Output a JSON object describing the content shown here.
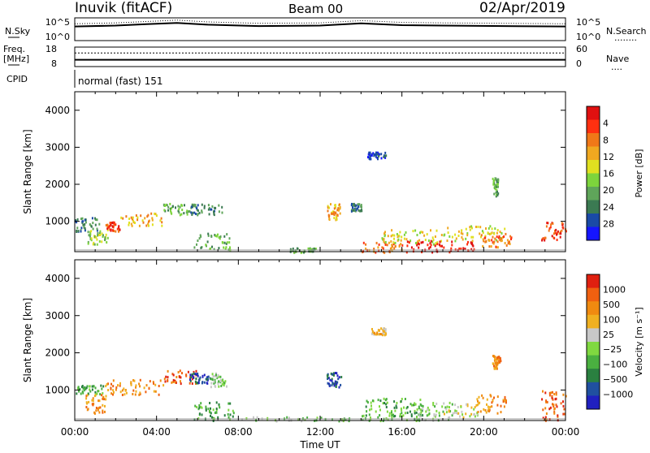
{
  "header": {
    "station": "Inuvik (fitACF)",
    "beam": "Beam 00",
    "date": "02/Apr/2019"
  },
  "noise_panel": {
    "left_label": "N.Sky",
    "left_ticks": [
      "10^5",
      "10^0"
    ],
    "right_ticks": [
      "10^5",
      "10^0"
    ],
    "right_label": "N.Search",
    "right_marker": "........"
  },
  "freq_panel": {
    "left_label_line1": "Freq.",
    "left_label_line2": "[MHz]",
    "left_ticks": [
      "18",
      "8"
    ],
    "right_ticks": [
      "60",
      "0"
    ],
    "right_label": "Nave",
    "right_marker": "...."
  },
  "cpid_panel": {
    "label": "CPID",
    "text": "normal (fast) 151"
  },
  "chart_data": [
    {
      "type": "heatmap",
      "name": "power",
      "ylabel": "Slant Range [km]",
      "yticks": [
        1000,
        2000,
        3000,
        4000
      ],
      "ylim": [
        180,
        4500
      ],
      "xlim": [
        0,
        24
      ],
      "colorbar": {
        "label": "Power [dB]",
        "ticks": [
          "4",
          "8",
          "12",
          "16",
          "20",
          "24",
          "28"
        ],
        "colors": [
          "#1515ff",
          "#1a4aa6",
          "#3b7a52",
          "#5fa55a",
          "#7dd43c",
          "#e0e020",
          "#f0a820",
          "#f07818",
          "#ff3010",
          "#e01010"
        ]
      },
      "regions": [
        {
          "t0": 0.0,
          "t1": 1.2,
          "r0": 750,
          "r1": 1150,
          "level": 2
        },
        {
          "t0": 0.6,
          "t1": 1.6,
          "r0": 400,
          "r1": 800,
          "level": 4
        },
        {
          "t0": 1.5,
          "t1": 2.2,
          "r0": 750,
          "r1": 1000,
          "level": 8
        },
        {
          "t0": 2.2,
          "t1": 4.3,
          "r0": 900,
          "r1": 1250,
          "level": 6
        },
        {
          "t0": 4.3,
          "t1": 5.8,
          "r0": 1200,
          "r1": 1500,
          "level": 3
        },
        {
          "t0": 5.6,
          "t1": 7.2,
          "r0": 1200,
          "r1": 1500,
          "level": 2
        },
        {
          "t0": 5.8,
          "t1": 7.6,
          "r0": 250,
          "r1": 700,
          "level": 3
        },
        {
          "t0": 10.5,
          "t1": 11.8,
          "r0": 180,
          "r1": 300,
          "level": 3
        },
        {
          "t0": 12.3,
          "t1": 13.0,
          "r0": 1050,
          "r1": 1500,
          "level": 6
        },
        {
          "t0": 13.5,
          "t1": 14.0,
          "r0": 1300,
          "r1": 1500,
          "level": 2
        },
        {
          "t0": 14.3,
          "t1": 15.2,
          "r0": 2700,
          "r1": 2900,
          "level": 1
        },
        {
          "t0": 14.0,
          "t1": 16.0,
          "r0": 180,
          "r1": 450,
          "level": 7
        },
        {
          "t0": 15.0,
          "t1": 18.0,
          "r0": 400,
          "r1": 800,
          "level": 5
        },
        {
          "t0": 16.2,
          "t1": 19.5,
          "r0": 180,
          "r1": 500,
          "level": 9
        },
        {
          "t0": 18.0,
          "t1": 21.0,
          "r0": 500,
          "r1": 900,
          "level": 5
        },
        {
          "t0": 19.8,
          "t1": 21.4,
          "r0": 300,
          "r1": 700,
          "level": 7
        },
        {
          "t0": 20.4,
          "t1": 20.7,
          "r0": 1700,
          "r1": 2200,
          "level": 3
        },
        {
          "t0": 22.8,
          "t1": 24.0,
          "r0": 500,
          "r1": 1000,
          "level": 8
        }
      ]
    },
    {
      "type": "heatmap",
      "name": "velocity",
      "ylabel": "Slant Range [km]",
      "yticks": [
        1000,
        2000,
        3000,
        4000
      ],
      "ylim": [
        180,
        4500
      ],
      "xlim": [
        0,
        24
      ],
      "xticks": [
        "00:00",
        "04:00",
        "08:00",
        "12:00",
        "16:00",
        "20:00",
        "00:00"
      ],
      "xlabel": "Time UT",
      "colorbar": {
        "label": "Velocity [m s⁻¹]",
        "ticks": [
          "1000",
          "500",
          "100",
          "25",
          "−25",
          "−100",
          "−500",
          "−1000"
        ],
        "colors": [
          "#2020c0",
          "#2050a0",
          "#2a8040",
          "#4ab040",
          "#80d840",
          "#c8c8c8",
          "#f0b020",
          "#f08a10",
          "#f06010",
          "#e02010"
        ]
      },
      "regions": [
        {
          "t0": 0.0,
          "t1": 1.4,
          "r0": 900,
          "r1": 1150,
          "level": 3
        },
        {
          "t0": 0.5,
          "t1": 1.5,
          "r0": 400,
          "r1": 900,
          "level": 7
        },
        {
          "t0": 1.4,
          "t1": 4.3,
          "r0": 900,
          "r1": 1300,
          "level": 7
        },
        {
          "t0": 4.3,
          "t1": 6.0,
          "r0": 1200,
          "r1": 1550,
          "level": 8
        },
        {
          "t0": 5.6,
          "t1": 6.6,
          "r0": 1200,
          "r1": 1500,
          "level": 1
        },
        {
          "t0": 6.6,
          "t1": 7.4,
          "r0": 1100,
          "r1": 1500,
          "level": 4
        },
        {
          "t0": 5.8,
          "t1": 7.8,
          "r0": 200,
          "r1": 700,
          "level": 3
        },
        {
          "t0": 12.3,
          "t1": 13.0,
          "r0": 1100,
          "r1": 1500,
          "level": 1
        },
        {
          "t0": 14.5,
          "t1": 15.2,
          "r0": 2500,
          "r1": 2700,
          "level": 6
        },
        {
          "t0": 8.0,
          "t1": 14.0,
          "r0": 180,
          "r1": 300,
          "level": 4
        },
        {
          "t0": 14.0,
          "t1": 17.0,
          "r0": 200,
          "r1": 800,
          "level": 3
        },
        {
          "t0": 16.5,
          "t1": 18.5,
          "r0": 200,
          "r1": 700,
          "level": 4
        },
        {
          "t0": 18.0,
          "t1": 19.7,
          "r0": 250,
          "r1": 650,
          "level": 5
        },
        {
          "t0": 19.6,
          "t1": 21.2,
          "r0": 400,
          "r1": 900,
          "level": 7
        },
        {
          "t0": 20.4,
          "t1": 20.8,
          "r0": 1600,
          "r1": 2000,
          "level": 7
        },
        {
          "t0": 22.8,
          "t1": 24.0,
          "r0": 200,
          "r1": 1000,
          "level": 8
        }
      ]
    }
  ],
  "noise_series": [
    {
      "t": 0.0,
      "v": 0.62
    },
    {
      "t": 2.0,
      "v": 0.66
    },
    {
      "t": 3.5,
      "v": 0.72
    },
    {
      "t": 5.0,
      "v": 0.78
    },
    {
      "t": 6.5,
      "v": 0.7
    },
    {
      "t": 9.0,
      "v": 0.64
    },
    {
      "t": 12.0,
      "v": 0.66
    },
    {
      "t": 14.0,
      "v": 0.76
    },
    {
      "t": 16.0,
      "v": 0.68
    },
    {
      "t": 18.0,
      "v": 0.66
    },
    {
      "t": 21.0,
      "v": 0.64
    },
    {
      "t": 24.0,
      "v": 0.62
    }
  ],
  "freq_series": {
    "freq": 0.35,
    "nave": 0.7
  }
}
